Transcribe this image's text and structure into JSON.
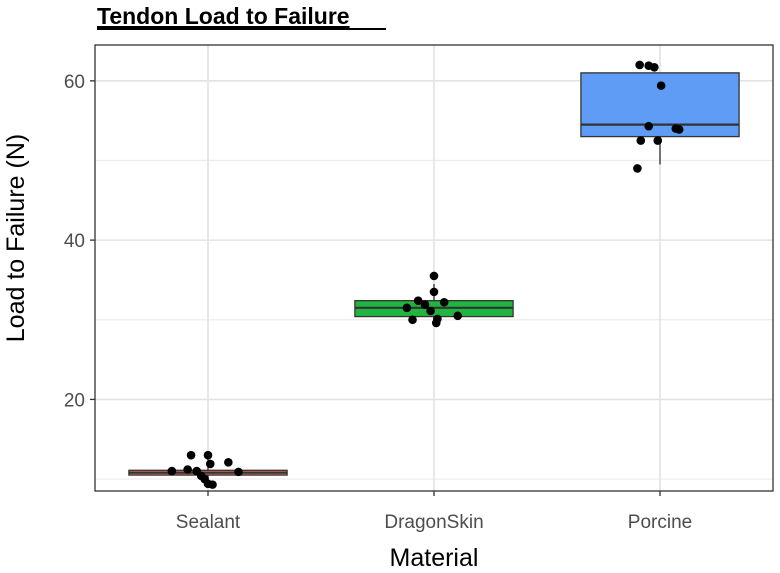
{
  "chart_data": {
    "type": "boxplot",
    "title": "Tendon Load to Failure",
    "xlabel": "Material",
    "ylabel": "Load to Failure (N)",
    "ylim": [
      8.5,
      64.5
    ],
    "yticks": [
      20,
      40,
      60
    ],
    "ygrid_minor": [
      10,
      30,
      50
    ],
    "grid": true,
    "categories": [
      "Sealant",
      "DragonSkin",
      "Porcine"
    ],
    "series": [
      {
        "name": "Sealant",
        "color": "#e8735f",
        "box": {
          "min": 9.5,
          "q1": 10.5,
          "median": 10.8,
          "q3": 11.1,
          "max": 12.5
        },
        "points": [
          {
            "dx": -0.32,
            "y": 11.0
          },
          {
            "dx": -0.18,
            "y": 11.2
          },
          {
            "dx": -0.15,
            "y": 13.0
          },
          {
            "dx": -0.1,
            "y": 11.0
          },
          {
            "dx": -0.06,
            "y": 10.4
          },
          {
            "dx": -0.03,
            "y": 10.0
          },
          {
            "dx": 0.0,
            "y": 13.0
          },
          {
            "dx": 0.0,
            "y": 9.4
          },
          {
            "dx": 0.04,
            "y": 9.3
          },
          {
            "dx": 0.02,
            "y": 11.9
          },
          {
            "dx": 0.18,
            "y": 12.1
          },
          {
            "dx": 0.27,
            "y": 10.9
          }
        ]
      },
      {
        "name": "DragonSkin",
        "color": "#1fb53f",
        "box": {
          "min": 30.0,
          "q1": 30.4,
          "median": 31.5,
          "q3": 32.4,
          "max": 34.5
        },
        "points": [
          {
            "dx": -0.24,
            "y": 31.5
          },
          {
            "dx": -0.19,
            "y": 30.0
          },
          {
            "dx": -0.14,
            "y": 32.4
          },
          {
            "dx": 0.0,
            "y": 35.5
          },
          {
            "dx": 0.0,
            "y": 33.5
          },
          {
            "dx": 0.03,
            "y": 30.1
          },
          {
            "dx": -0.03,
            "y": 31.1
          },
          {
            "dx": 0.02,
            "y": 29.6
          },
          {
            "dx": 0.09,
            "y": 32.2
          },
          {
            "dx": 0.21,
            "y": 30.5
          },
          {
            "dx": -0.08,
            "y": 31.9
          }
        ]
      },
      {
        "name": "Porcine",
        "color": "#5e9cf5",
        "box": {
          "min": 49.5,
          "q1": 53.0,
          "median": 54.5,
          "q3": 61.0,
          "max": 61.0
        },
        "points": [
          {
            "dx": -0.2,
            "y": 49.0
          },
          {
            "dx": -0.17,
            "y": 52.5
          },
          {
            "dx": -0.1,
            "y": 54.3
          },
          {
            "dx": -0.18,
            "y": 62.0
          },
          {
            "dx": -0.1,
            "y": 61.9
          },
          {
            "dx": -0.05,
            "y": 61.7
          },
          {
            "dx": -0.02,
            "y": 52.5
          },
          {
            "dx": 0.01,
            "y": 59.4
          },
          {
            "dx": 0.14,
            "y": 54.0
          },
          {
            "dx": 0.17,
            "y": 53.9
          }
        ]
      }
    ]
  }
}
